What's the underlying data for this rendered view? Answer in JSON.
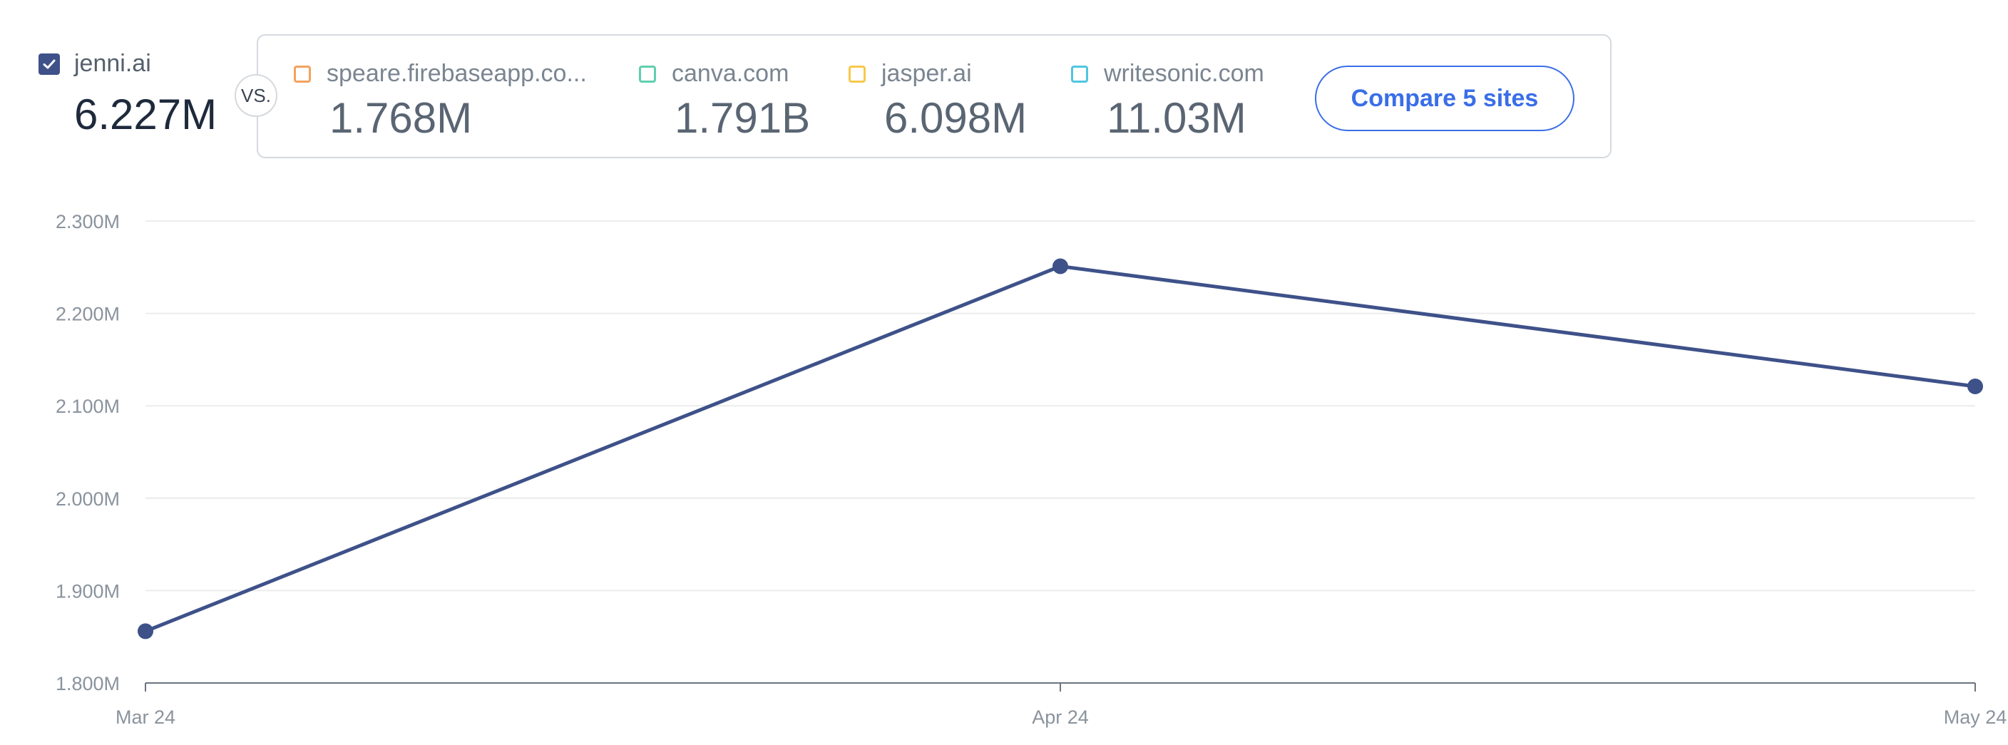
{
  "primary_site": {
    "name": "jenni.ai",
    "value": "6.227M",
    "checked": true,
    "color": "#3e5189"
  },
  "vs_label": "VS.",
  "competitors": [
    {
      "name": "speare.firebaseapp.co...",
      "value": "1.768M",
      "color": "#f4a25e"
    },
    {
      "name": "canva.com",
      "value": "1.791B",
      "color": "#5fcfae"
    },
    {
      "name": "jasper.ai",
      "value": "6.098M",
      "color": "#f7c84a"
    },
    {
      "name": "writesonic.com",
      "value": "11.03M",
      "color": "#4fc6e0"
    }
  ],
  "compare_button": {
    "label": "Compare 5 sites"
  },
  "chart_data": {
    "type": "line",
    "x": [
      "Mar 24",
      "Apr 24",
      "May 24"
    ],
    "series": [
      {
        "name": "jenni.ai",
        "values": [
          1.856,
          2.251,
          2.121
        ],
        "color": "#3e5189"
      }
    ],
    "y_ticks": [
      1.8,
      1.9,
      2.0,
      2.1,
      2.2,
      2.3
    ],
    "y_tick_labels": [
      "1.800M",
      "1.900M",
      "2.000M",
      "2.100M",
      "2.200M",
      "2.300M"
    ],
    "ylim": [
      1.8,
      2.3
    ],
    "grid": true,
    "title": "",
    "xlabel": "",
    "ylabel": ""
  }
}
